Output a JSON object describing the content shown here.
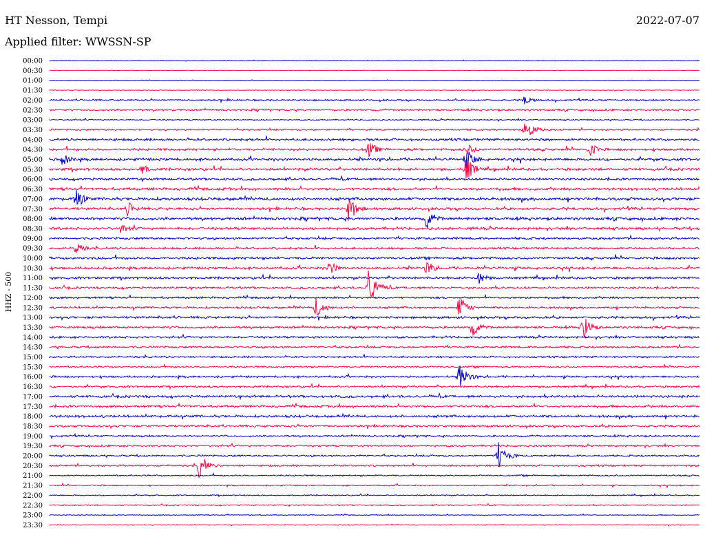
{
  "header": {
    "station": "HT Nesson, Tempi",
    "date": "2022-07-07",
    "filter": "Applied filter: WWSSN-SP"
  },
  "colors": {
    "trace_a": "#0000cc",
    "trace_b": "#ff0040",
    "text": "#000000",
    "background": "#ffffff"
  },
  "chart_data": {
    "type": "line",
    "title": "HT Nesson, Tempi",
    "subtitle": "Applied filter: WWSSN-SP",
    "ylabel": "HHZ - 500",
    "xlabel": "",
    "grid": false,
    "legend": "none",
    "row_labels": [
      "00:00",
      "00:30",
      "01:00",
      "01:30",
      "02:00",
      "02:30",
      "03:00",
      "03:30",
      "04:00",
      "04:30",
      "05:00",
      "05:30",
      "06:00",
      "06:30",
      "07:00",
      "07:30",
      "08:00",
      "08:30",
      "09:00",
      "09:30",
      "10:00",
      "10:30",
      "11:00",
      "11:30",
      "12:00",
      "12:30",
      "13:00",
      "13:30",
      "14:00",
      "14:30",
      "15:00",
      "15:30",
      "16:00",
      "16:30",
      "17:00",
      "17:30",
      "18:00",
      "18:30",
      "19:00",
      "19:30",
      "20:00",
      "20:30",
      "21:00",
      "21:30",
      "22:00",
      "22:30",
      "23:00",
      "23:30"
    ],
    "row_colors": [
      "trace_a",
      "trace_b"
    ],
    "row_noise": [
      0.3,
      0.2,
      0.3,
      0.4,
      1.0,
      1.2,
      0.8,
      1.0,
      1.5,
      1.5,
      1.6,
      1.6,
      1.4,
      1.6,
      1.8,
      1.6,
      1.8,
      1.6,
      1.4,
      1.3,
      1.5,
      1.5,
      1.4,
      1.3,
      1.2,
      1.3,
      1.4,
      1.4,
      1.3,
      1.2,
      1.1,
      1.0,
      1.2,
      1.2,
      1.5,
      1.4,
      1.5,
      1.3,
      1.1,
      1.2,
      1.1,
      1.1,
      0.9,
      0.8,
      0.7,
      0.7,
      0.5,
      0.5
    ],
    "events": [
      {
        "row": 4,
        "pos": 0.73,
        "amp": 8
      },
      {
        "row": 7,
        "pos": 0.73,
        "amp": 20
      },
      {
        "row": 9,
        "pos": 0.49,
        "amp": 14
      },
      {
        "row": 9,
        "pos": 0.64,
        "amp": 12
      },
      {
        "row": 9,
        "pos": 0.83,
        "amp": 12
      },
      {
        "row": 10,
        "pos": 0.64,
        "amp": 18
      },
      {
        "row": 10,
        "pos": 0.02,
        "amp": 10
      },
      {
        "row": 11,
        "pos": 0.64,
        "amp": 20
      },
      {
        "row": 11,
        "pos": 0.14,
        "amp": 9
      },
      {
        "row": 14,
        "pos": 0.04,
        "amp": 16
      },
      {
        "row": 15,
        "pos": 0.12,
        "amp": 12
      },
      {
        "row": 15,
        "pos": 0.46,
        "amp": 20
      },
      {
        "row": 16,
        "pos": 0.58,
        "amp": 16
      },
      {
        "row": 17,
        "pos": 0.11,
        "amp": 9
      },
      {
        "row": 19,
        "pos": 0.04,
        "amp": 9
      },
      {
        "row": 21,
        "pos": 0.43,
        "amp": 11
      },
      {
        "row": 21,
        "pos": 0.58,
        "amp": 12
      },
      {
        "row": 22,
        "pos": 0.66,
        "amp": 10
      },
      {
        "row": 23,
        "pos": 0.49,
        "amp": 30
      },
      {
        "row": 25,
        "pos": 0.41,
        "amp": 16
      },
      {
        "row": 25,
        "pos": 0.63,
        "amp": 18
      },
      {
        "row": 27,
        "pos": 0.65,
        "amp": 14
      },
      {
        "row": 27,
        "pos": 0.82,
        "amp": 20
      },
      {
        "row": 32,
        "pos": 0.63,
        "amp": 20
      },
      {
        "row": 40,
        "pos": 0.69,
        "amp": 22
      },
      {
        "row": 41,
        "pos": 0.23,
        "amp": 18
      }
    ]
  }
}
